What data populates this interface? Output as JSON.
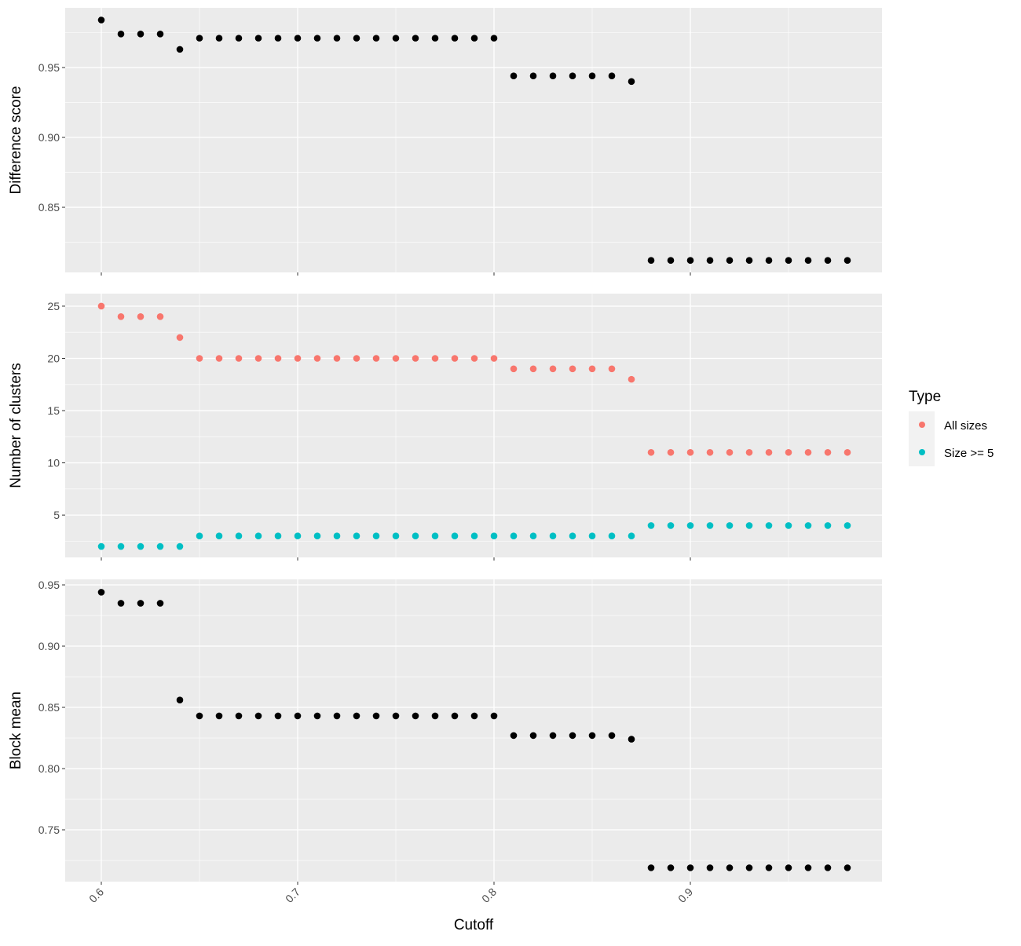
{
  "chart_data": {
    "type": "scatter",
    "xlabel": "Cutoff",
    "x": [
      0.6,
      0.61,
      0.62,
      0.63,
      0.64,
      0.65,
      0.66,
      0.67,
      0.68,
      0.69,
      0.7,
      0.71,
      0.72,
      0.73,
      0.74,
      0.75,
      0.76,
      0.77,
      0.78,
      0.79,
      0.8,
      0.81,
      0.82,
      0.83,
      0.84,
      0.85,
      0.86,
      0.87,
      0.88,
      0.89,
      0.9,
      0.91,
      0.92,
      0.93,
      0.94,
      0.95,
      0.96,
      0.97,
      0.98
    ],
    "xlim": [
      0.5816,
      0.9976
    ],
    "xticks": [
      0.6,
      0.7,
      0.8,
      0.9
    ],
    "xtick_labels": [
      "0.6",
      "0.7",
      "0.8",
      "0.9"
    ],
    "grid": true,
    "panels": [
      {
        "ylabel": "Difference score",
        "ylim": [
          0.8034,
          0.9927
        ],
        "yticks": [
          0.85,
          0.9,
          0.95
        ],
        "ytick_labels": [
          "0.85",
          "0.90",
          "0.95"
        ],
        "series": [
          {
            "name": "Difference score",
            "color": "#000000",
            "values": [
              0.984,
              0.974,
              0.974,
              0.974,
              0.963,
              0.971,
              0.971,
              0.971,
              0.971,
              0.971,
              0.971,
              0.971,
              0.971,
              0.971,
              0.971,
              0.971,
              0.971,
              0.971,
              0.971,
              0.971,
              0.971,
              0.944,
              0.944,
              0.944,
              0.944,
              0.944,
              0.944,
              0.94,
              0.812,
              0.812,
              0.812,
              0.812,
              0.812,
              0.812,
              0.812,
              0.812,
              0.812,
              0.812,
              0.812
            ]
          }
        ]
      },
      {
        "ylabel": "Number of clusters",
        "ylim": [
          0.95,
          26.2
        ],
        "yticks": [
          5,
          10,
          15,
          20,
          25
        ],
        "ytick_labels": [
          "5",
          "10",
          "15",
          "20",
          "25"
        ],
        "series": [
          {
            "name": "All sizes",
            "color": "#F8766D",
            "values": [
              25,
              24,
              24,
              24,
              22,
              20,
              20,
              20,
              20,
              20,
              20,
              20,
              20,
              20,
              20,
              20,
              20,
              20,
              20,
              20,
              20,
              19,
              19,
              19,
              19,
              19,
              19,
              18,
              11,
              11,
              11,
              11,
              11,
              11,
              11,
              11,
              11,
              11,
              11
            ]
          },
          {
            "name": "Size >= 5",
            "color": "#00BFC4",
            "values": [
              2,
              2,
              2,
              2,
              2,
              3,
              3,
              3,
              3,
              3,
              3,
              3,
              3,
              3,
              3,
              3,
              3,
              3,
              3,
              3,
              3,
              3,
              3,
              3,
              3,
              3,
              3,
              3,
              4,
              4,
              4,
              4,
              4,
              4,
              4,
              4,
              4,
              4,
              4
            ]
          }
        ]
      },
      {
        "ylabel": "Block mean",
        "ylim": [
          0.7077,
          0.9545
        ],
        "yticks": [
          0.75,
          0.8,
          0.85,
          0.9,
          0.95
        ],
        "ytick_labels": [
          "0.75",
          "0.80",
          "0.85",
          "0.90",
          "0.95"
        ],
        "series": [
          {
            "name": "Block mean",
            "color": "#000000",
            "values": [
              0.944,
              0.935,
              0.935,
              0.935,
              0.856,
              0.843,
              0.843,
              0.843,
              0.843,
              0.843,
              0.843,
              0.843,
              0.843,
              0.843,
              0.843,
              0.843,
              0.843,
              0.843,
              0.843,
              0.843,
              0.843,
              0.827,
              0.827,
              0.827,
              0.827,
              0.827,
              0.827,
              0.824,
              0.719,
              0.719,
              0.719,
              0.719,
              0.719,
              0.719,
              0.719,
              0.719,
              0.719,
              0.719,
              0.719
            ]
          }
        ]
      }
    ],
    "legend": {
      "title": "Type",
      "placement": "right",
      "entries": [
        {
          "label": "All sizes",
          "color": "#F8766D"
        },
        {
          "label": "Size >= 5",
          "color": "#00BFC4"
        }
      ]
    }
  }
}
